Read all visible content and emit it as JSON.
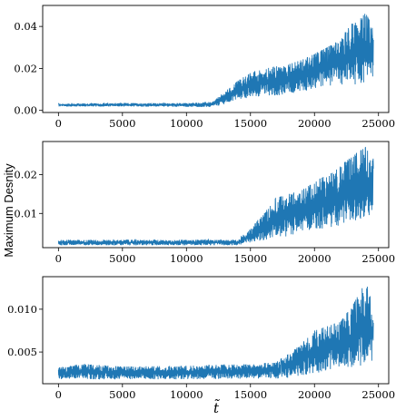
{
  "figure": {
    "ylabel": "Maximum Desnity",
    "xlabel": "t̃",
    "series_color": "#1f77b4"
  },
  "chart_data": [
    {
      "type": "line",
      "xlim": [
        -1230,
        25800
      ],
      "ylim": [
        -0.001,
        0.05
      ],
      "x_ticks": [
        0,
        5000,
        10000,
        15000,
        20000,
        25000
      ],
      "x_tick_labels": [
        "0",
        "5000",
        "10000",
        "15000",
        "20000",
        "25000"
      ],
      "y_ticks": [
        0.0,
        0.02,
        0.04
      ],
      "y_tick_labels": [
        "0.00",
        "0.02",
        "0.04"
      ],
      "envelope_x": [
        0,
        5000,
        10000,
        12000,
        13000,
        14000,
        15000,
        16000,
        17000,
        18000,
        19000,
        20000,
        21000,
        22000,
        23000,
        24000,
        24600
      ],
      "envelope_low": [
        0.0018,
        0.0018,
        0.0017,
        0.0015,
        0.003,
        0.005,
        0.006,
        0.007,
        0.007,
        0.008,
        0.009,
        0.01,
        0.011,
        0.012,
        0.012,
        0.013,
        0.014
      ],
      "envelope_high": [
        0.0032,
        0.0035,
        0.0035,
        0.004,
        0.009,
        0.014,
        0.018,
        0.02,
        0.021,
        0.022,
        0.024,
        0.027,
        0.03,
        0.034,
        0.042,
        0.047,
        0.038
      ]
    },
    {
      "type": "line",
      "xlim": [
        -1230,
        25800
      ],
      "ylim": [
        0.0012,
        0.0285
      ],
      "x_ticks": [
        0,
        5000,
        10000,
        15000,
        20000,
        25000
      ],
      "x_tick_labels": [
        "0",
        "5000",
        "10000",
        "15000",
        "20000",
        "25000"
      ],
      "y_ticks": [
        0.01,
        0.02
      ],
      "y_tick_labels": [
        "0.01",
        "0.02"
      ],
      "envelope_x": [
        0,
        5000,
        10000,
        14000,
        15000,
        16000,
        17000,
        18000,
        19000,
        20000,
        21000,
        22000,
        23000,
        24000,
        24600
      ],
      "envelope_low": [
        0.0018,
        0.0018,
        0.0018,
        0.0018,
        0.0025,
        0.003,
        0.004,
        0.004,
        0.005,
        0.006,
        0.006,
        0.007,
        0.008,
        0.009,
        0.01
      ],
      "envelope_high": [
        0.0032,
        0.0032,
        0.0032,
        0.0033,
        0.006,
        0.01,
        0.014,
        0.015,
        0.016,
        0.018,
        0.02,
        0.022,
        0.025,
        0.027,
        0.024
      ]
    },
    {
      "type": "line",
      "xlim": [
        -1230,
        25800
      ],
      "ylim": [
        0.0013,
        0.0138
      ],
      "x_ticks": [
        0,
        5000,
        10000,
        15000,
        20000,
        25000
      ],
      "x_tick_labels": [
        "0",
        "5000",
        "10000",
        "15000",
        "20000",
        "25000"
      ],
      "y_ticks": [
        0.005,
        0.01
      ],
      "y_tick_labels": [
        "0.005",
        "0.010"
      ],
      "envelope_x": [
        0,
        2000,
        5000,
        10000,
        15000,
        17000,
        18000,
        19000,
        20000,
        21000,
        22000,
        23000,
        24000,
        24600
      ],
      "envelope_low": [
        0.0018,
        0.0018,
        0.0018,
        0.0018,
        0.0019,
        0.0019,
        0.002,
        0.0022,
        0.0025,
        0.0028,
        0.003,
        0.0032,
        0.0035,
        0.0038
      ],
      "envelope_high": [
        0.0032,
        0.0036,
        0.0033,
        0.0034,
        0.0036,
        0.0038,
        0.0048,
        0.006,
        0.0075,
        0.008,
        0.0085,
        0.0105,
        0.0132,
        0.0105
      ]
    }
  ]
}
